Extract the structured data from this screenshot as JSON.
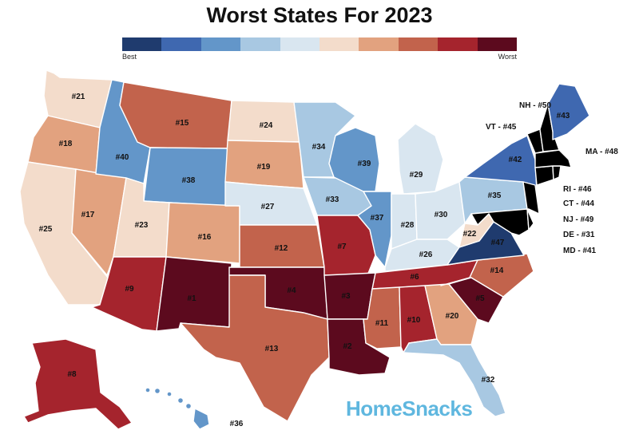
{
  "title": "Worst States For 2023",
  "legend": {
    "min_label": "Best",
    "max_label": "Worst",
    "colors": [
      "#1f3b6e",
      "#3f68b0",
      "#6396c9",
      "#a8c8e2",
      "#d9e6f0",
      "#f3dccb",
      "#e2a27f",
      "#c2634c",
      "#a5242d",
      "#5c0a1e"
    ]
  },
  "brand": "HomeSnacks",
  "states": {
    "WA": "#21",
    "OR": "#18",
    "CA": "#25",
    "NV": "#17",
    "ID": "#40",
    "MT": "#15",
    "WY": "#38",
    "UT": "#23",
    "AZ": "#9",
    "CO": "#16",
    "NM": "#1",
    "ND": "#24",
    "SD": "#19",
    "NE": "#27",
    "KS": "#12",
    "OK": "#4",
    "TX": "#13",
    "MN": "#34",
    "IA": "#33",
    "MO": "#7",
    "AR": "#3",
    "LA": "#2",
    "WI": "#39",
    "IL": "#37",
    "MI": "#29",
    "IN": "#28",
    "OH": "#30",
    "KY": "#26",
    "TN": "#6",
    "MS": "#11",
    "AL": "#10",
    "GA": "#20",
    "FL": "#32",
    "SC": "#5",
    "NC": "#14",
    "VA": "#47",
    "WV": "#22",
    "PA": "#35",
    "NY": "#42",
    "ME": "#43",
    "AK": "#8",
    "HI": "#36"
  },
  "callouts": {
    "NH": "NH - #50",
    "VT": "VT - #45",
    "MA": "MA - #48",
    "RI": "RI - #46",
    "CT": "CT - #44",
    "NJ": "NJ - #49",
    "DE": "DE - #31",
    "MD": "MD - #41"
  }
}
